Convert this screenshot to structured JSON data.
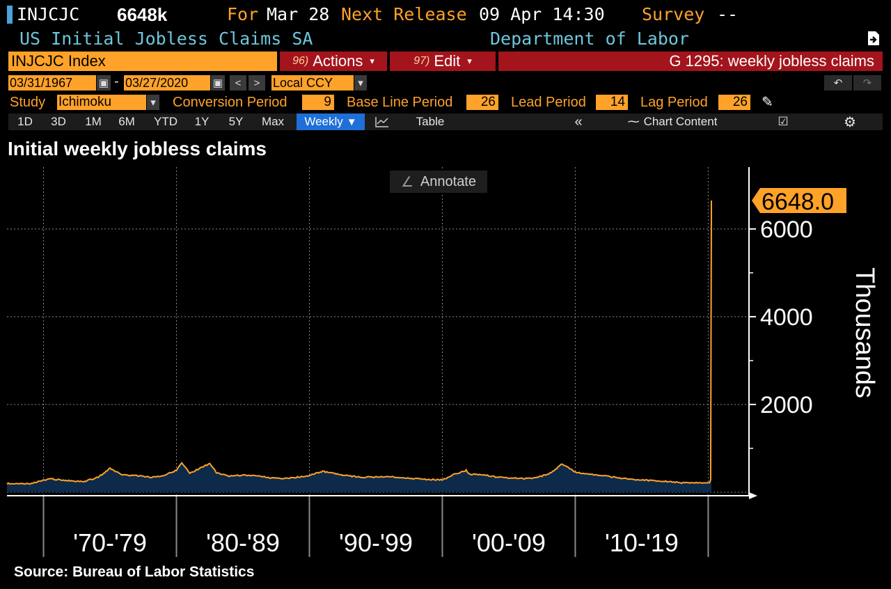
{
  "header": {
    "ticker": "INJCJC",
    "last_value": "6648k",
    "for_label": "For",
    "for_date": "Mar 28",
    "next_release_label": "Next Release",
    "next_release": "09 Apr 14:30",
    "survey_label": "Survey",
    "survey_value": "--",
    "series_name": "US Initial Jobless Claims SA",
    "source_agency": "Department of Labor"
  },
  "toolbar": {
    "index_label": "INJCJC Index",
    "actions_num": "96)",
    "actions_label": "Actions",
    "edit_num": "97)",
    "edit_label": "Edit",
    "graph_title": "G 1295: weekly jobless claims",
    "start_date": "03/31/1967",
    "date_sep": "-",
    "end_date": "03/27/2020",
    "currency": "Local CCY",
    "undo_icon": "undo-icon",
    "redo_icon": "redo-icon"
  },
  "study": {
    "label": "Study",
    "value": "Ichimoku",
    "conversion_label": "Conversion Period",
    "conversion_value": "9",
    "baseline_label": "Base Line Period",
    "baseline_value": "26",
    "lead_label": "Lead Period",
    "lead_value": "14",
    "lag_label": "Lag Period",
    "lag_value": "26"
  },
  "tabs": {
    "periods": [
      "1D",
      "3D",
      "1M",
      "6M",
      "YTD",
      "1Y",
      "5Y",
      "Max"
    ],
    "frequency": "Weekly",
    "table": "Table",
    "chart_content": "Chart Content"
  },
  "chart": {
    "title": "Initial weekly jobless claims",
    "annotate_label": "Annotate",
    "last_value_label": "6648.0",
    "source": "Source: Bureau of Labor Statistics",
    "line_color": "#ffa229",
    "fill_color": "#0d2a4a"
  },
  "chart_data": {
    "type": "area",
    "title": "Initial weekly jobless claims",
    "ylabel": "Thousands",
    "ylim": [
      0,
      6648
    ],
    "yticks": [
      2000,
      4000,
      6000
    ],
    "ytick_labels": [
      "2000",
      "4000",
      "6000"
    ],
    "xlim": [
      1967.25,
      2020.24
    ],
    "decade_labels": [
      "'70-'79",
      "'80-'89",
      "'90-'99",
      "'00-'09",
      "'10-'19"
    ],
    "decade_starts": [
      1970,
      1980,
      1990,
      2000,
      2010,
      2020
    ],
    "x": [
      1967.25,
      1968,
      1969,
      1970,
      1970.5,
      1971,
      1972,
      1973,
      1974,
      1974.5,
      1975,
      1975.5,
      1976,
      1977,
      1978,
      1979,
      1980,
      1980.4,
      1981,
      1982,
      1982.5,
      1983,
      1984,
      1985,
      1986,
      1987,
      1988,
      1989,
      1990,
      1991,
      1991.5,
      1992,
      1993,
      1994,
      1995,
      1996,
      1997,
      1998,
      1999,
      2000,
      2001,
      2001.8,
      2002,
      2003,
      2004,
      2005,
      2006,
      2007,
      2008,
      2008.5,
      2009,
      2009.5,
      2010,
      2011,
      2012,
      2013,
      2014,
      2015,
      2016,
      2017,
      2018,
      2019,
      2020.1,
      2020.18,
      2020.24
    ],
    "values": [
      200,
      190,
      195,
      280,
      310,
      290,
      260,
      240,
      330,
      420,
      540,
      460,
      390,
      380,
      340,
      370,
      500,
      660,
      430,
      580,
      650,
      450,
      370,
      390,
      380,
      330,
      310,
      340,
      380,
      480,
      440,
      420,
      370,
      340,
      350,
      360,
      320,
      310,
      290,
      280,
      420,
      500,
      410,
      400,
      350,
      330,
      310,
      320,
      420,
      520,
      650,
      560,
      460,
      410,
      380,
      340,
      300,
      280,
      260,
      245,
      215,
      215,
      215,
      282,
      6648
    ]
  }
}
